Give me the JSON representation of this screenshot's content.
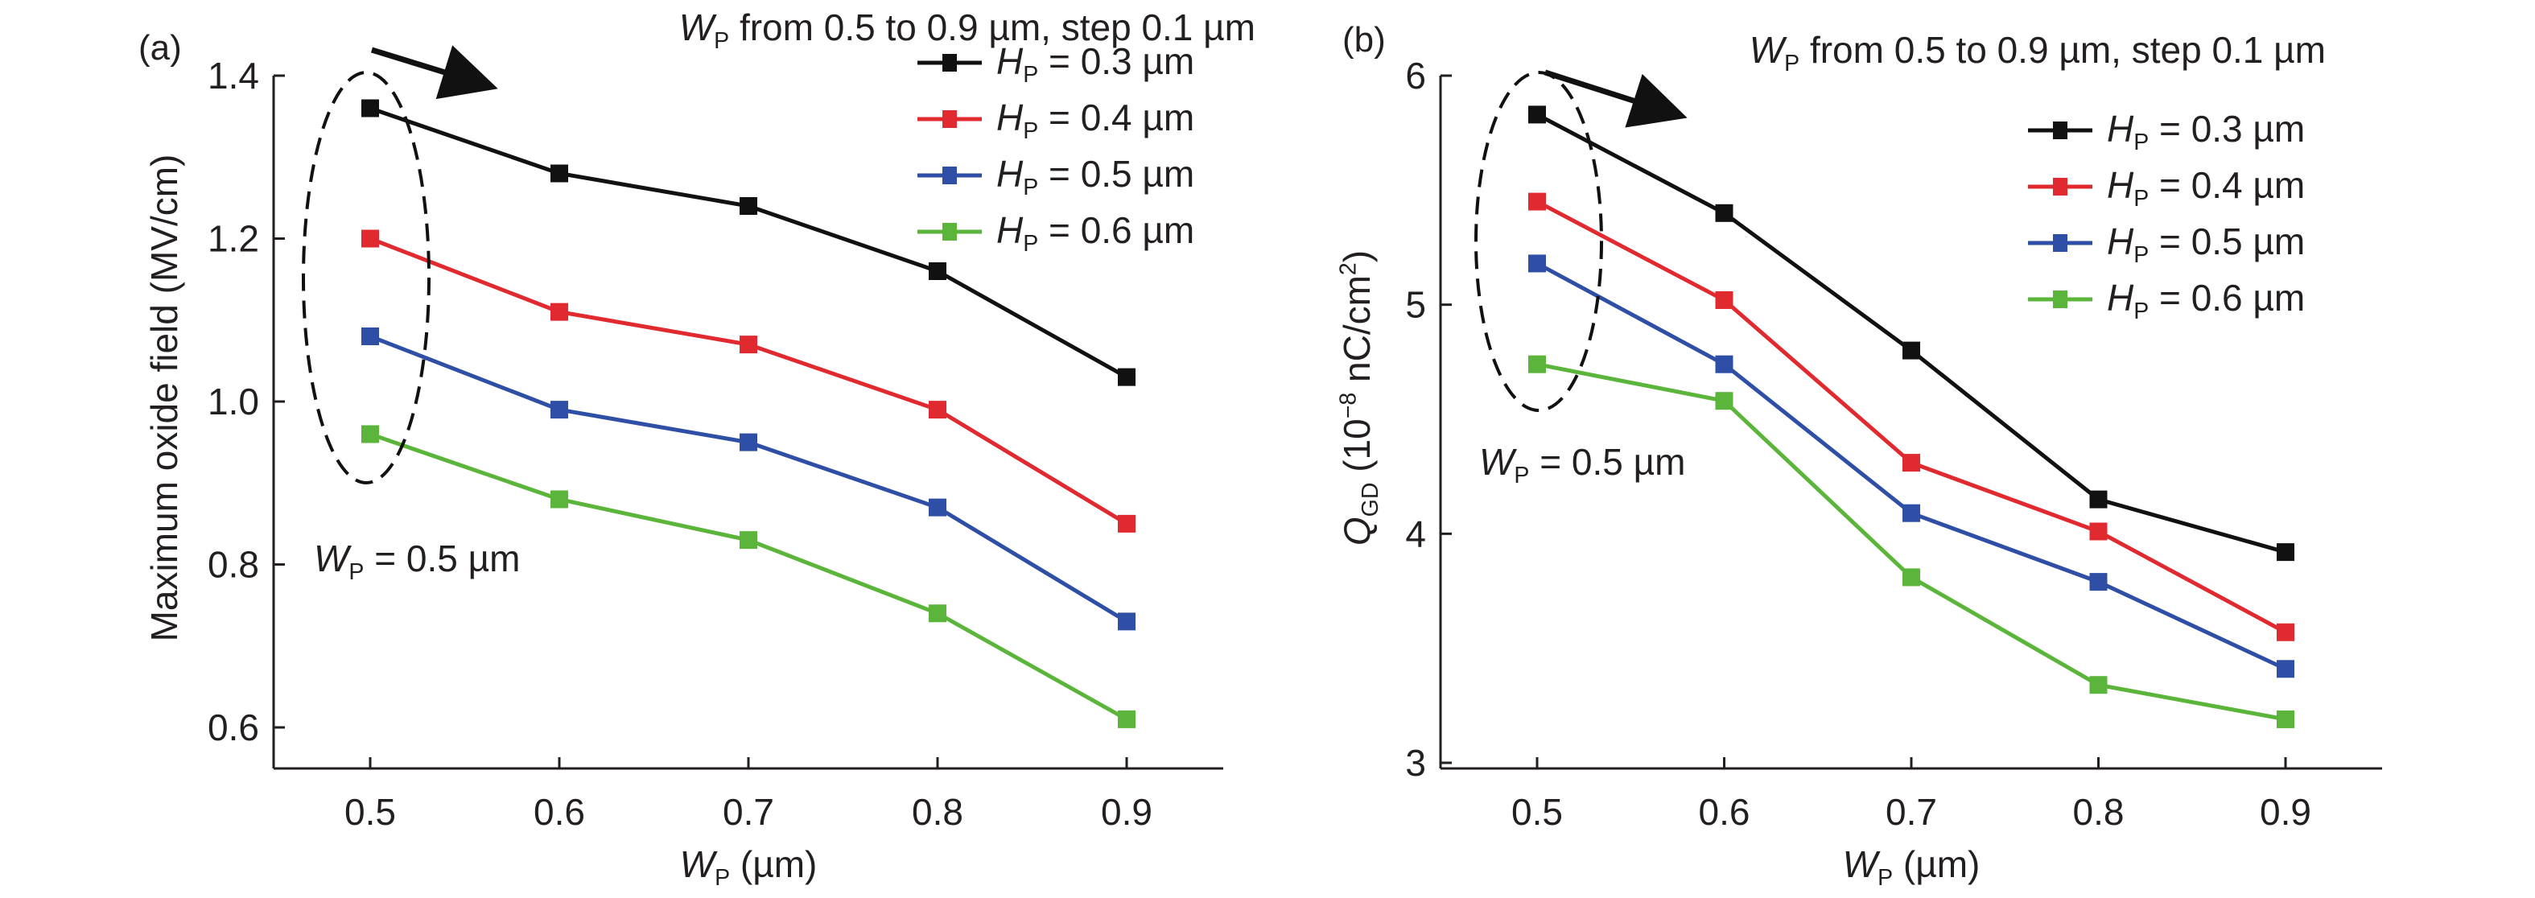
{
  "chart_data": [
    {
      "panel_label": "(a)",
      "type": "line",
      "title": "",
      "xlabel": "W_P (µm)",
      "xlabel_main": "W",
      "xlabel_sub": "P",
      "xlabel_rest": " (µm)",
      "ylabel": "Maximum oxide field (MV/cm)",
      "x": [
        0.5,
        0.6,
        0.7,
        0.8,
        0.9
      ],
      "xticks": [
        "0.5",
        "0.6",
        "0.7",
        "0.8",
        "0.9"
      ],
      "xlim": [
        0.45,
        0.95
      ],
      "ylim": [
        0.55,
        1.4
      ],
      "yticks": [
        0.6,
        0.8,
        1.0,
        1.2,
        1.4
      ],
      "ytick_labels": [
        "0.6",
        "0.8",
        "1.0",
        "1.2",
        "1.4"
      ],
      "grid": false,
      "legend_position": "top-right",
      "annotation_top": {
        "main": "W",
        "sub": "P",
        "rest": " from 0.5 to 0.9 µm, step 0.1 µm"
      },
      "annotation_ellipse": {
        "main": "W",
        "sub": "P",
        "rest": " = 0.5 µm"
      },
      "series": [
        {
          "name": "H_P = 0.3 µm",
          "label_value": " = 0.3 µm",
          "color": "#111111",
          "values": [
            1.36,
            1.28,
            1.24,
            1.16,
            1.03
          ]
        },
        {
          "name": "H_P = 0.4 µm",
          "label_value": " = 0.4 µm",
          "color": "#e02a30",
          "values": [
            1.2,
            1.11,
            1.07,
            0.99,
            0.85
          ]
        },
        {
          "name": "H_P = 0.5 µm",
          "label_value": " = 0.5 µm",
          "color": "#2e4fa5",
          "values": [
            1.08,
            0.99,
            0.95,
            0.87,
            0.73
          ]
        },
        {
          "name": "H_P = 0.6 µm",
          "label_value": " = 0.6 µm",
          "color": "#5bb53a",
          "values": [
            0.96,
            0.88,
            0.83,
            0.74,
            0.61
          ]
        }
      ]
    },
    {
      "panel_label": "(b)",
      "type": "line",
      "title": "",
      "xlabel": "W_P (µm)",
      "xlabel_main": "W",
      "xlabel_sub": "P",
      "xlabel_rest": " (µm)",
      "ylabel": "Q_GD (10^-8 nC/cm^2)",
      "ylabel_main": "Q",
      "ylabel_sub": "GD",
      "ylabel_rest": " (10",
      "ylabel_sup": "−8",
      "ylabel_rest2": " nC/cm",
      "ylabel_sup2": "2",
      "ylabel_end": ")",
      "x": [
        0.5,
        0.6,
        0.7,
        0.8,
        0.9
      ],
      "xticks": [
        "0.5",
        "0.6",
        "0.7",
        "0.8",
        "0.9"
      ],
      "xlim": [
        0.45,
        0.95
      ],
      "ylim": [
        3,
        6
      ],
      "yticks": [
        3,
        4,
        5,
        6
      ],
      "ytick_labels": [
        "3",
        "4",
        "5",
        "6"
      ],
      "grid": false,
      "legend_position": "top-right",
      "annotation_top": {
        "main": "W",
        "sub": "P",
        "rest": " from 0.5 to 0.9 µm, step 0.1 µm"
      },
      "annotation_ellipse": {
        "main": "W",
        "sub": "P",
        "rest": " = 0.5 µm"
      },
      "series": [
        {
          "name": "H_P = 0.3 µm",
          "label_value": " = 0.3 µm",
          "color": "#111111",
          "values": [
            5.83,
            5.4,
            4.8,
            4.15,
            3.92
          ]
        },
        {
          "name": "H_P = 0.4 µm",
          "label_value": " = 0.4 µm",
          "color": "#e02a30",
          "values": [
            5.45,
            5.02,
            4.31,
            4.01,
            3.57
          ]
        },
        {
          "name": "H_P = 0.5 µm",
          "label_value": " = 0.5 µm",
          "color": "#2e4fa5",
          "values": [
            5.18,
            4.74,
            4.09,
            3.79,
            3.41
          ]
        },
        {
          "name": "H_P = 0.6 µm",
          "label_value": " = 0.6 µm",
          "color": "#5bb53a",
          "values": [
            4.74,
            4.58,
            3.81,
            3.34,
            3.19
          ]
        }
      ]
    }
  ],
  "legend_symbol": "H",
  "legend_sub": "P"
}
